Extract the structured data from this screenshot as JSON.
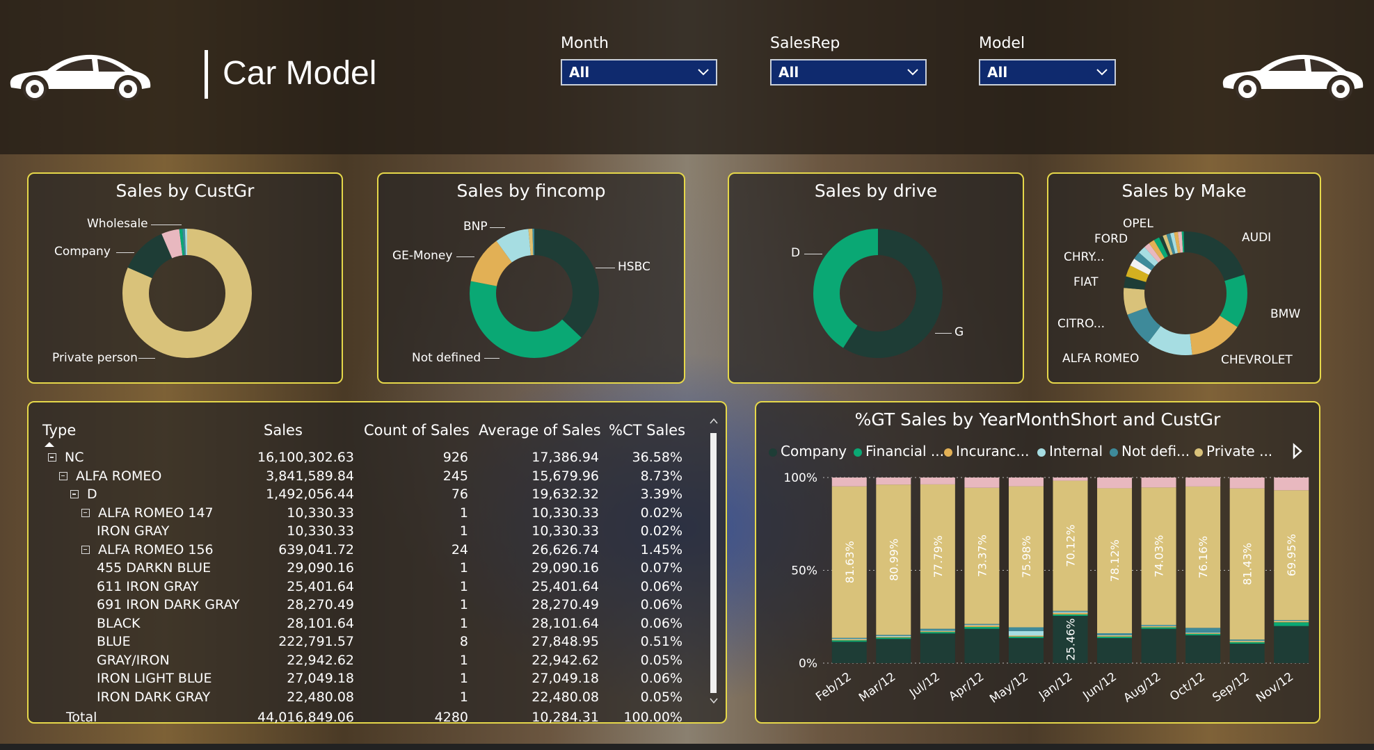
{
  "page": {
    "title": "Car Model"
  },
  "slicers": [
    {
      "label": "Month",
      "value": "All"
    },
    {
      "label": "SalesRep",
      "value": "All"
    },
    {
      "label": "Model",
      "value": "All"
    }
  ],
  "colors": {
    "dark_teal": "#1e3d36",
    "green": "#0aa874",
    "gold": "#d4b56a",
    "light_blue": "#a6dde2",
    "pink": "#e8b8bf",
    "steel": "#3e8a9a",
    "orange": "#e2b055",
    "tan": "#d9c27a",
    "panel_border": "#e6d84a",
    "slicer_bg": "#0f2a6e"
  },
  "icons": [
    "car-icon",
    "chevron-down-icon",
    "expand-collapse-icon",
    "sort-up-icon",
    "scroll-up-icon",
    "scroll-down-icon",
    "legend-next-icon"
  ],
  "donuts": [
    {
      "title": "Sales by CustGr",
      "chart_data": {
        "type": "pie",
        "slices": [
          {
            "label": "Private person",
            "value": 0.815,
            "color": "#d9c27a"
          },
          {
            "label": "Company",
            "value": 0.12,
            "color": "#1e3d36"
          },
          {
            "label": "Wholesale",
            "value": 0.045,
            "color": "#e8b8bf"
          },
          {
            "label": "",
            "value": 0.008,
            "color": "#0aa874"
          },
          {
            "label": "",
            "value": 0.006,
            "color": "#3e8a9a"
          },
          {
            "label": "",
            "value": 0.006,
            "color": "#a6dde2"
          }
        ]
      }
    },
    {
      "title": "Sales by fincomp",
      "chart_data": {
        "type": "pie",
        "slices": [
          {
            "label": "HSBC",
            "value": 0.37,
            "color": "#1e3d36"
          },
          {
            "label": "Not defined",
            "value": 0.41,
            "color": "#0aa874"
          },
          {
            "label": "GE-Money",
            "value": 0.12,
            "color": "#e2b055"
          },
          {
            "label": "BNP",
            "value": 0.085,
            "color": "#a6dde2"
          },
          {
            "label": "",
            "value": 0.01,
            "color": "#e0c070"
          },
          {
            "label": "",
            "value": 0.005,
            "color": "#3e8a9a"
          }
        ]
      }
    },
    {
      "title": "Sales by drive",
      "chart_data": {
        "type": "pie",
        "slices": [
          {
            "label": "G",
            "value": 0.59,
            "color": "#1e3d36"
          },
          {
            "label": "D",
            "value": 0.41,
            "color": "#0aa874"
          }
        ]
      }
    },
    {
      "title": "Sales by Make",
      "chart_data": {
        "type": "pie",
        "slices": [
          {
            "label": "AUDI",
            "value": 0.2,
            "color": "#1e3d36"
          },
          {
            "label": "BMW",
            "value": 0.14,
            "color": "#0aa874"
          },
          {
            "label": "CHEVROLET",
            "value": 0.14,
            "color": "#e2b055"
          },
          {
            "label": "ALFA ROMEO",
            "value": 0.12,
            "color": "#a6dde2"
          },
          {
            "label": "CITRO...",
            "value": 0.09,
            "color": "#3e8a9a"
          },
          {
            "label": "FIAT",
            "value": 0.07,
            "color": "#d9c27a"
          },
          {
            "label": "",
            "value": 0.03,
            "color": "#1e3d36"
          },
          {
            "label": "CHRY...",
            "value": 0.03,
            "color": "#d4b020"
          },
          {
            "label": "",
            "value": 0.02,
            "color": "#f2f2f2"
          },
          {
            "label": "",
            "value": 0.02,
            "color": "#3e8a9a"
          },
          {
            "label": "FORD",
            "value": 0.02,
            "color": "#a6dde2"
          },
          {
            "label": "",
            "value": 0.015,
            "color": "#e8b8bf"
          },
          {
            "label": "",
            "value": 0.015,
            "color": "#e2b055"
          },
          {
            "label": "OPEL",
            "value": 0.015,
            "color": "#0aa874"
          },
          {
            "label": "",
            "value": 0.01,
            "color": "#1e3d36"
          },
          {
            "label": "",
            "value": 0.01,
            "color": "#d9c27a"
          },
          {
            "label": "",
            "value": 0.01,
            "color": "#3e8a9a"
          },
          {
            "label": "",
            "value": 0.01,
            "color": "#a6dde2"
          },
          {
            "label": "",
            "value": 0.01,
            "color": "#e2b055"
          },
          {
            "label": "",
            "value": 0.01,
            "color": "#e8b8bf"
          },
          {
            "label": "",
            "value": 0.005,
            "color": "#0aa874"
          },
          {
            "label": "",
            "value": 0.005,
            "color": "#1e3d36"
          }
        ]
      }
    }
  ],
  "matrix": {
    "headers": [
      "Type",
      "Sales",
      "Count of Sales",
      "Average of Sales",
      "%CT Sales"
    ],
    "rows": [
      {
        "level": 0,
        "expander": true,
        "name": "NC",
        "sales": "16,100,302.63",
        "count": "926",
        "avg": "17,386.94",
        "pct": "36.58%"
      },
      {
        "level": 1,
        "expander": true,
        "name": "ALFA ROMEO",
        "sales": "3,841,589.84",
        "count": "245",
        "avg": "15,679.96",
        "pct": "8.73%"
      },
      {
        "level": 2,
        "expander": true,
        "name": "D",
        "sales": "1,492,056.44",
        "count": "76",
        "avg": "19,632.32",
        "pct": "3.39%"
      },
      {
        "level": 3,
        "expander": true,
        "name": "ALFA ROMEO 147",
        "sales": "10,330.33",
        "count": "1",
        "avg": "10,330.33",
        "pct": "0.02%"
      },
      {
        "level": 4,
        "expander": false,
        "name": "IRON GRAY",
        "sales": "10,330.33",
        "count": "1",
        "avg": "10,330.33",
        "pct": "0.02%"
      },
      {
        "level": 3,
        "expander": true,
        "name": "ALFA ROMEO 156",
        "sales": "639,041.72",
        "count": "24",
        "avg": "26,626.74",
        "pct": "1.45%"
      },
      {
        "level": 4,
        "expander": false,
        "name": "455 DARKN BLUE",
        "sales": "29,090.16",
        "count": "1",
        "avg": "29,090.16",
        "pct": "0.07%"
      },
      {
        "level": 4,
        "expander": false,
        "name": "611 IRON GRAY",
        "sales": "25,401.64",
        "count": "1",
        "avg": "25,401.64",
        "pct": "0.06%"
      },
      {
        "level": 4,
        "expander": false,
        "name": "691 IRON DARK GRAY",
        "sales": "28,270.49",
        "count": "1",
        "avg": "28,270.49",
        "pct": "0.06%"
      },
      {
        "level": 4,
        "expander": false,
        "name": "BLACK",
        "sales": "28,101.64",
        "count": "1",
        "avg": "28,101.64",
        "pct": "0.06%"
      },
      {
        "level": 4,
        "expander": false,
        "name": "BLUE",
        "sales": "222,791.57",
        "count": "8",
        "avg": "27,848.95",
        "pct": "0.51%"
      },
      {
        "level": 4,
        "expander": false,
        "name": "GRAY/IRON",
        "sales": "22,942.62",
        "count": "1",
        "avg": "22,942.62",
        "pct": "0.05%"
      },
      {
        "level": 4,
        "expander": false,
        "name": "IRON LIGHT BLUE",
        "sales": "27,049.18",
        "count": "1",
        "avg": "27,049.18",
        "pct": "0.06%"
      },
      {
        "level": 4,
        "expander": false,
        "name": "IRON DARK GRAY",
        "sales": "22,480.08",
        "count": "1",
        "avg": "22,480.08",
        "pct": "0.05%"
      }
    ],
    "total": {
      "name": "Total",
      "sales": "44,016,849.06",
      "count": "4280",
      "avg": "10,284.31",
      "pct": "100.00%"
    }
  },
  "stacked": {
    "title": "%GT Sales by YearMonthShort and CustGr",
    "chart_data": {
      "type": "bar",
      "stacked": true,
      "categories": [
        "Feb/12",
        "Mar/12",
        "Jul/12",
        "Apr/12",
        "May/12",
        "Jan/12",
        "Jun/12",
        "Aug/12",
        "Oct/12",
        "Sep/12",
        "Nov/12"
      ],
      "y_ticks": [
        "0%",
        "50%",
        "100%"
      ],
      "ylim": [
        0,
        100
      ],
      "series": [
        {
          "name": "Company",
          "color": "#1e3d36",
          "values": [
            11.5,
            13.0,
            16.0,
            18.5,
            13.5,
            25.46,
            13.5,
            18.5,
            15.0,
            10.5,
            20.0
          ]
        },
        {
          "name": "Financial ...",
          "color": "#0aa874",
          "values": [
            0.8,
            0.8,
            0.8,
            1.0,
            0.8,
            0.8,
            0.8,
            0.8,
            0.8,
            0.8,
            2.0
          ]
        },
        {
          "name": "Incuranc...",
          "color": "#e2b055",
          "values": [
            0.5,
            0.4,
            0.4,
            0.8,
            0.5,
            0.8,
            0.5,
            0.5,
            0.4,
            0.5,
            0.6
          ]
        },
        {
          "name": "Internal",
          "color": "#a6dde2",
          "values": [
            0.3,
            0.4,
            0.3,
            0.4,
            2.5,
            0.6,
            0.3,
            0.3,
            0.3,
            0.3,
            0.3
          ]
        },
        {
          "name": "Not defi...",
          "color": "#3e8a9a",
          "values": [
            0.5,
            0.6,
            1.0,
            0.4,
            2.0,
            0.5,
            1.0,
            0.5,
            2.5,
            0.6,
            0.3
          ]
        },
        {
          "name": "Private ...",
          "color": "#d9c27a",
          "values": [
            81.63,
            80.99,
            77.79,
            73.37,
            75.98,
            70.12,
            78.12,
            74.03,
            76.16,
            81.43,
            69.95
          ]
        },
        {
          "name": "",
          "color": "#e8b8bf",
          "values": [
            4.77,
            3.81,
            3.71,
            5.53,
            4.72,
            1.72,
            5.78,
            5.37,
            4.84,
            5.87,
            6.85
          ]
        }
      ],
      "labels": [
        {
          "bar": 0,
          "series": 5,
          "text": "81.63%"
        },
        {
          "bar": 1,
          "series": 5,
          "text": "80.99%"
        },
        {
          "bar": 2,
          "series": 5,
          "text": "77.79%"
        },
        {
          "bar": 3,
          "series": 5,
          "text": "73.37%"
        },
        {
          "bar": 4,
          "series": 5,
          "text": "75.98%"
        },
        {
          "bar": 5,
          "series": 5,
          "text": "70.12%"
        },
        {
          "bar": 5,
          "series": 0,
          "text": "25.46%"
        },
        {
          "bar": 6,
          "series": 5,
          "text": "78.12%"
        },
        {
          "bar": 7,
          "series": 5,
          "text": "74.03%"
        },
        {
          "bar": 8,
          "series": 5,
          "text": "76.16%"
        },
        {
          "bar": 9,
          "series": 5,
          "text": "81.43%"
        },
        {
          "bar": 10,
          "series": 5,
          "text": "69.95%"
        }
      ]
    }
  }
}
